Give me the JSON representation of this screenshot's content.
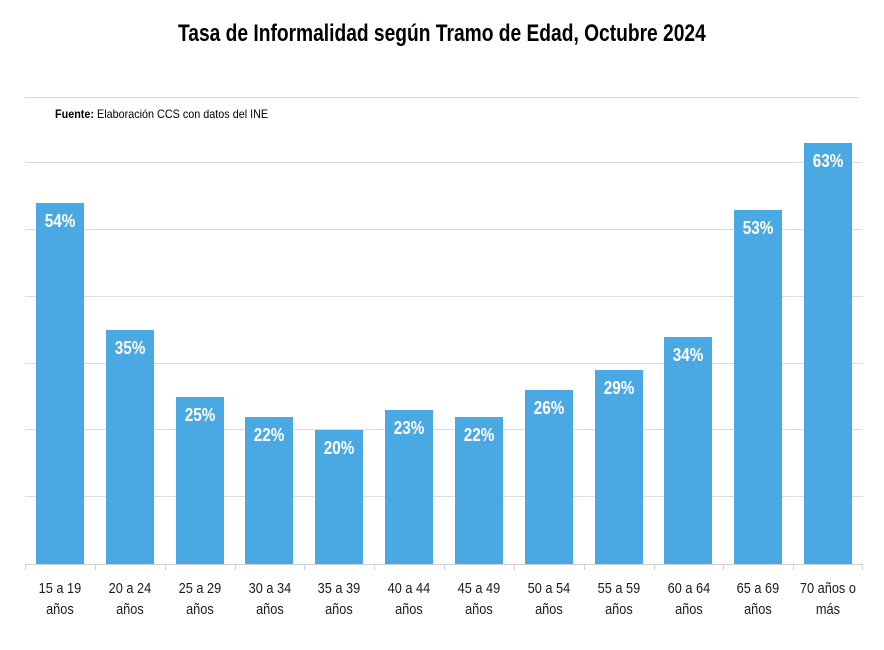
{
  "page": {
    "title": "Tasa de Informalidad según Tramo de Edad, Octubre 2024",
    "source_prefix": "Fuente:",
    "source_text": "Elaboración CCS con datos del INE"
  },
  "chart_data": {
    "type": "bar",
    "title": "Tasa de Informalidad según Tramo de Edad, Octubre 2024",
    "categories": [
      "15 a 19 años",
      "20 a 24 años",
      "25 a 29 años",
      "30 a 34 años",
      "35 a 39 años",
      "40 a 44 años",
      "45 a 49 años",
      "50 a 54 años",
      "55 a 59 años",
      "60 a 64 años",
      "65 a 69 años",
      "70 años o más"
    ],
    "values": [
      54,
      35,
      25,
      22,
      20,
      23,
      22,
      26,
      29,
      34,
      53,
      63
    ],
    "unit": "%",
    "data_labels": [
      "54%",
      "35%",
      "25%",
      "22%",
      "20%",
      "23%",
      "22%",
      "26%",
      "29%",
      "34%",
      "53%",
      "63%"
    ],
    "xlabel": "",
    "ylabel": "",
    "ylim": [
      0,
      65
    ],
    "gridlines": [
      10,
      20,
      30,
      40,
      50,
      60
    ],
    "yaxis_tick_labels": "hidden",
    "legend": "none",
    "grid": true,
    "bar_color": "#4AA8E2",
    "value_label_color": "#ffffff",
    "gridline_color": "#dcdcdc",
    "source": "Fuente: Elaboración CCS con datos del INE"
  }
}
